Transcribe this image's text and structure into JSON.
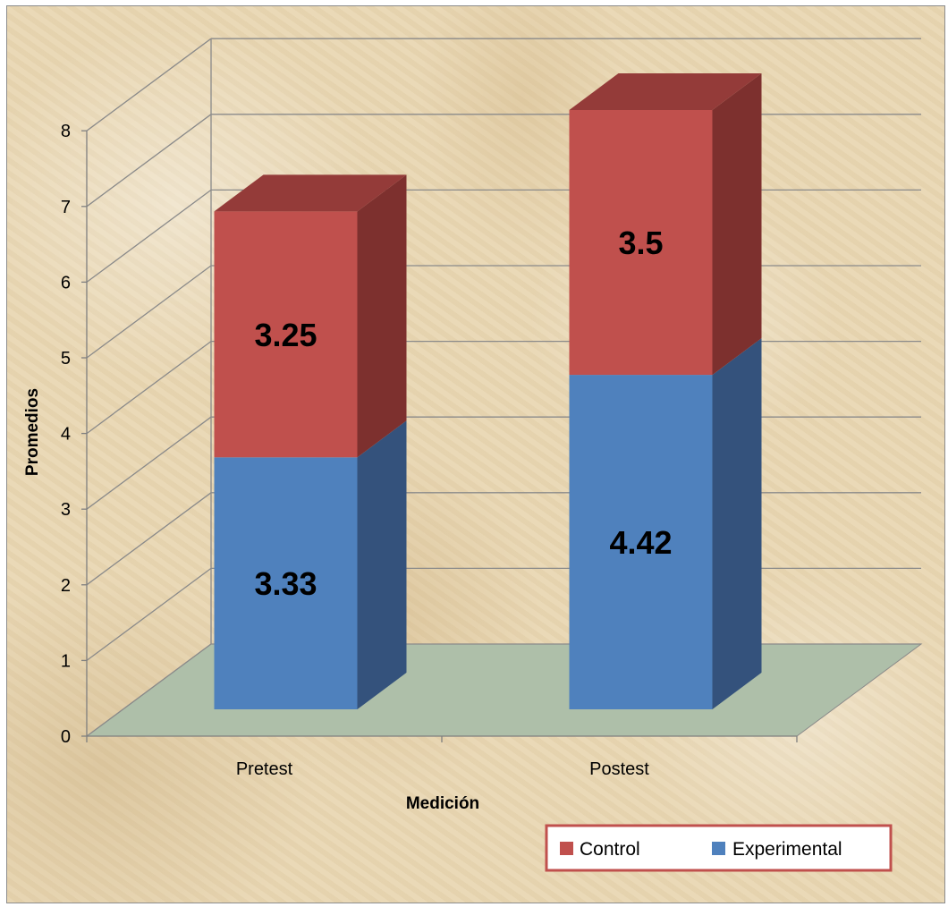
{
  "chart_data": {
    "type": "bar",
    "stacked": true,
    "three_d": true,
    "title": "",
    "xlabel": "Medición",
    "ylabel": "Promedios",
    "categories": [
      "Pretest",
      "Postest"
    ],
    "series": [
      {
        "name": "Experimental",
        "values": [
          3.33,
          4.42
        ],
        "color": "#4f81bd",
        "side_color": "#34527c",
        "top_color": "#3d6494"
      },
      {
        "name": "Control",
        "values": [
          3.25,
          3.5
        ],
        "color": "#c0504d",
        "side_color": "#7d302e",
        "top_color": "#943b39"
      }
    ],
    "data_labels": [
      [
        "3.33",
        "4.42"
      ],
      [
        "3.25",
        "3.5"
      ]
    ],
    "y_ticks": [
      "0",
      "1",
      "2",
      "3",
      "4",
      "5",
      "6",
      "7",
      "8"
    ],
    "ylim": [
      0,
      8
    ],
    "grid": true,
    "floor_color": "#aebfa9",
    "legend": {
      "position": "bottom-right",
      "entries": [
        "Control",
        "Experimental"
      ],
      "border_color": "#c0504d"
    }
  }
}
